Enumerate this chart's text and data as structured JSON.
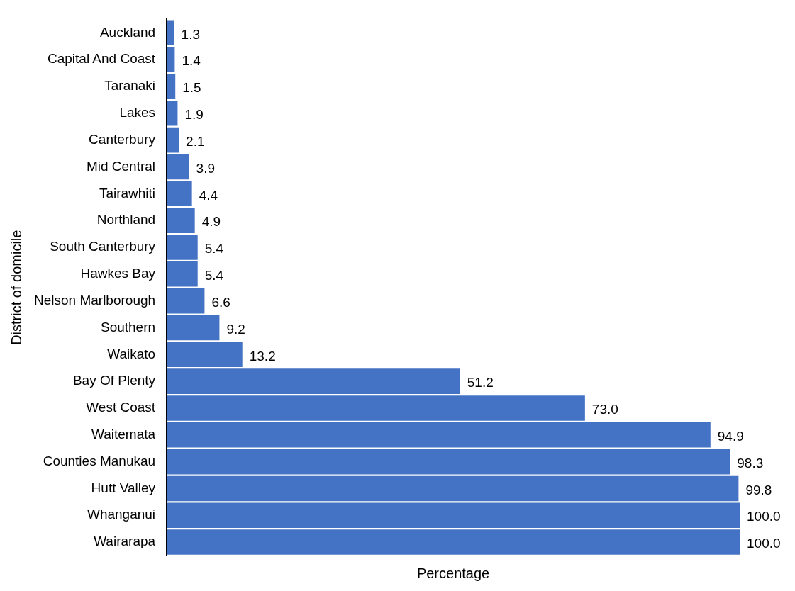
{
  "chart_data": {
    "type": "bar",
    "orientation": "horizontal",
    "xlabel": "Percentage",
    "ylabel": "District of domicile",
    "categories": [
      "Auckland",
      "Capital And Coast",
      "Taranaki",
      "Lakes",
      "Canterbury",
      "Mid Central",
      "Tairawhiti",
      "Northland",
      "South Canterbury",
      "Hawkes Bay",
      "Nelson Marlborough",
      "Southern",
      "Waikato",
      "Bay Of Plenty",
      "West Coast",
      "Waitemata",
      "Counties Manukau",
      "Hutt Valley",
      "Whanganui",
      "Wairarapa"
    ],
    "values": [
      1.3,
      1.4,
      1.5,
      1.9,
      2.1,
      3.9,
      4.4,
      4.9,
      5.4,
      5.4,
      6.6,
      9.2,
      13.2,
      51.2,
      73.0,
      94.9,
      98.3,
      99.8,
      100.0,
      100.0
    ],
    "value_labels": [
      "1.3",
      "1.4",
      "1.5",
      "1.9",
      "2.1",
      "3.9",
      "4.4",
      "4.9",
      "5.4",
      "5.4",
      "6.6",
      "9.2",
      "13.2",
      "51.2",
      "73.0",
      "94.9",
      "98.3",
      "99.8",
      "100.0",
      "100.0"
    ],
    "color": "#4472c4",
    "grid": false,
    "legend": false,
    "tick_labels": "y"
  }
}
